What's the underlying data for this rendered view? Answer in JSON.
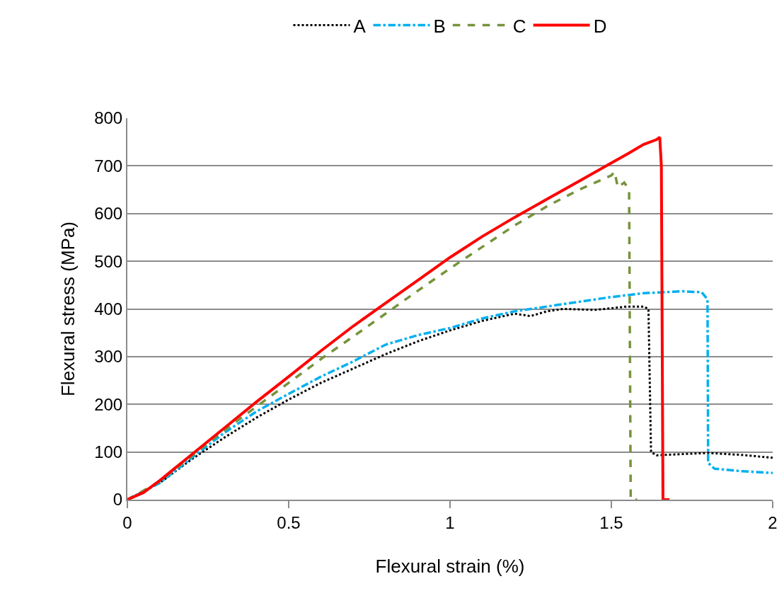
{
  "chart_data": {
    "type": "line",
    "xlabel": "Flexural strain (%)",
    "ylabel": "Flexural stress (MPa)",
    "xlim": [
      0,
      2
    ],
    "xticks": [
      0,
      0.5,
      1,
      1.5,
      2
    ],
    "ylim": [
      0,
      800
    ],
    "yticks": [
      0,
      100,
      200,
      300,
      400,
      500,
      600,
      700,
      800
    ],
    "grid": "y",
    "legend": "top",
    "series": [
      {
        "name": "A",
        "color": "#000000",
        "line_style": "dotted",
        "x": [
          0,
          0.1,
          0.2,
          0.3,
          0.4,
          0.5,
          0.6,
          0.7,
          0.8,
          0.9,
          1.0,
          1.1,
          1.2,
          1.25,
          1.3,
          1.35,
          1.45,
          1.55,
          1.6,
          1.615,
          1.623,
          1.64,
          1.7,
          1.8,
          1.9,
          2.0
        ],
        "values": [
          0,
          35,
          85,
          130,
          172,
          210,
          245,
          275,
          305,
          332,
          355,
          375,
          390,
          385,
          395,
          400,
          398,
          405,
          405,
          400,
          100,
          93,
          95,
          98,
          94,
          88
        ]
      },
      {
        "name": "B",
        "color": "#00b0f0",
        "line_style": "dashdot",
        "x": [
          0,
          0.1,
          0.2,
          0.3,
          0.4,
          0.5,
          0.6,
          0.7,
          0.8,
          0.9,
          1.0,
          1.1,
          1.2,
          1.3,
          1.4,
          1.5,
          1.6,
          1.66,
          1.72,
          1.78,
          1.798,
          1.8,
          1.82,
          1.9,
          2.0
        ],
        "values": [
          0,
          35,
          88,
          140,
          185,
          222,
          258,
          290,
          325,
          345,
          360,
          380,
          395,
          405,
          415,
          425,
          433,
          435,
          437,
          435,
          420,
          77,
          65,
          60,
          56
        ]
      },
      {
        "name": "C",
        "color": "#77933c",
        "line_style": "dashed",
        "x": [
          0,
          0.1,
          0.2,
          0.3,
          0.4,
          0.5,
          0.6,
          0.7,
          0.8,
          0.9,
          1.0,
          1.1,
          1.2,
          1.3,
          1.4,
          1.5,
          1.51,
          1.52,
          1.54,
          1.555,
          1.56,
          1.58
        ],
        "values": [
          0,
          38,
          92,
          145,
          195,
          245,
          295,
          342,
          390,
          438,
          485,
          530,
          575,
          615,
          650,
          680,
          688,
          655,
          665,
          650,
          0,
          0
        ]
      },
      {
        "name": "D",
        "color": "#ff0000",
        "line_style": "solid",
        "x": [
          0,
          0.05,
          0.1,
          0.2,
          0.3,
          0.4,
          0.5,
          0.6,
          0.7,
          0.8,
          0.9,
          1.0,
          1.1,
          1.2,
          1.3,
          1.4,
          1.5,
          1.55,
          1.6,
          1.64,
          1.65,
          1.655,
          1.66,
          1.68
        ],
        "values": [
          0,
          15,
          40,
          95,
          150,
          205,
          258,
          312,
          364,
          412,
          460,
          508,
          552,
          592,
          630,
          668,
          706,
          725,
          745,
          755,
          760,
          700,
          0,
          0
        ]
      }
    ]
  }
}
